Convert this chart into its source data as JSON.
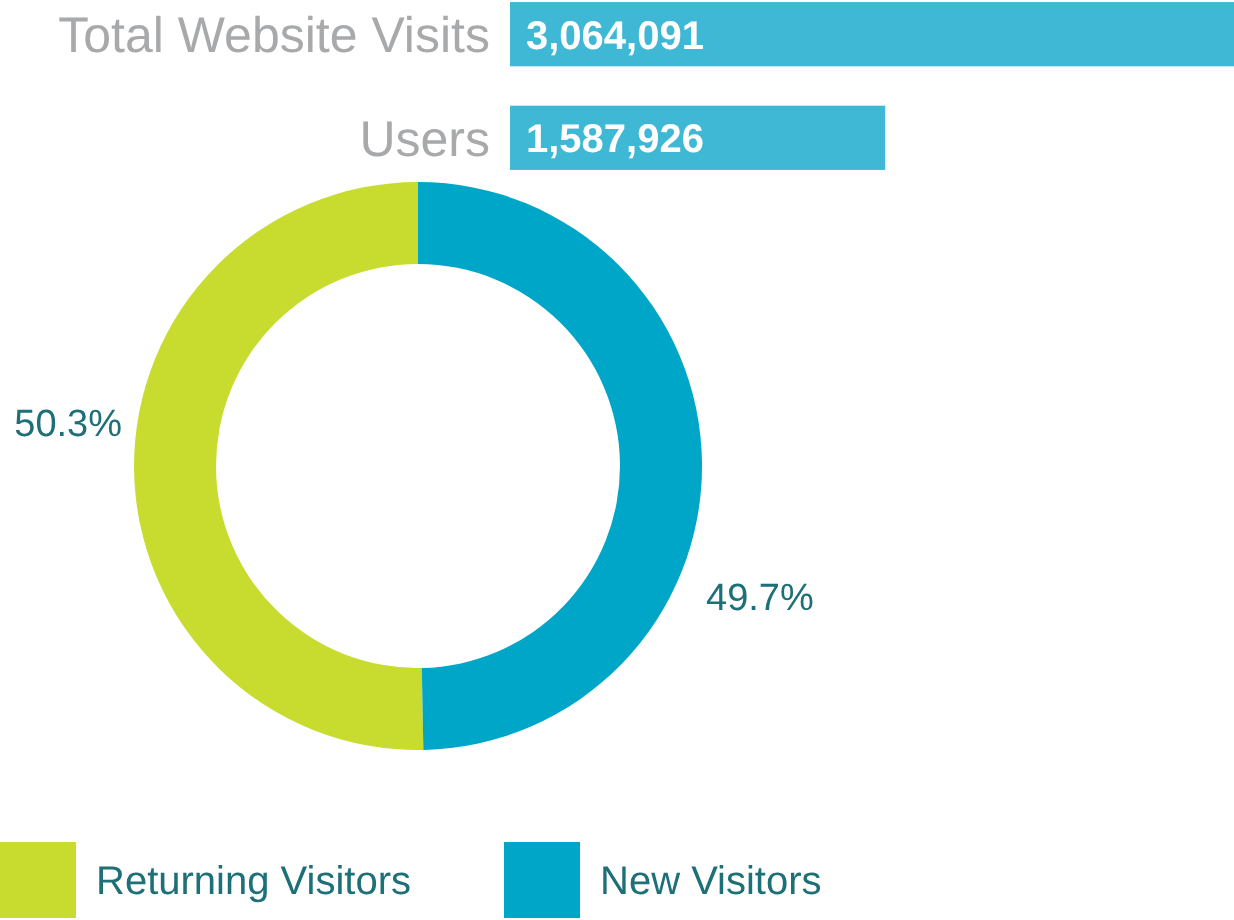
{
  "chart_data": [
    {
      "type": "bar",
      "orientation": "horizontal",
      "categories": [
        "Total Website Visits",
        "Users"
      ],
      "values": [
        3064091,
        1587926
      ],
      "color": "#3fb8d6",
      "data_labels": true,
      "value_labels": [
        "3,064,091",
        "1,587,926"
      ]
    },
    {
      "type": "donut",
      "categories": [
        "Returning Visitors",
        "New Visitors"
      ],
      "values": [
        50.3,
        49.7
      ],
      "colors": [
        "#c8dc2f",
        "#00a6c7"
      ],
      "data_labels": true,
      "value_labels": [
        "50.3%",
        "49.7%"
      ],
      "legend": "bottom"
    }
  ]
}
